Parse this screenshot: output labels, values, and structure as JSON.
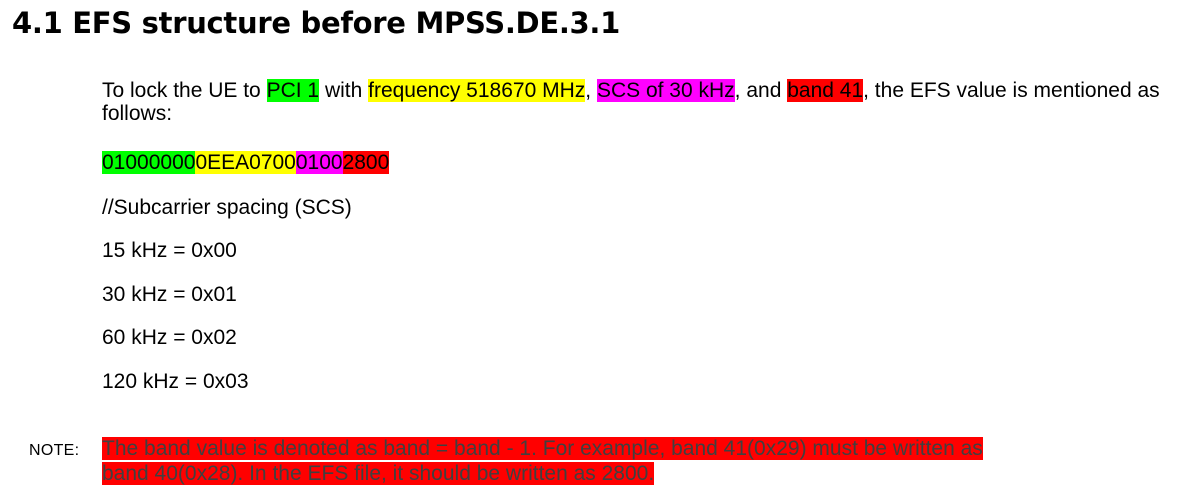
{
  "heading": "4.1 EFS structure before MPSS.DE.3.1",
  "intro": {
    "t1": "To lock the UE to ",
    "pci": "PCI 1",
    "t2": " with ",
    "freq": "frequency 518670 MHz",
    "t3": ", ",
    "scs": "SCS of 30 kHz",
    "t4": ", and ",
    "band": "band 41",
    "t5": ", the EFS value is mentioned as follows:"
  },
  "efs_value": {
    "pci_part": "01000000",
    "freq_part": "0EEA0700",
    "scs_part": "0100",
    "band_part": "2800"
  },
  "scs_comment": "//Subcarrier spacing (SCS)",
  "scs_table": [
    "15 kHz  = 0x00",
    "30 kHz = 0x01",
    "60 kHz = 0x02",
    "120 kHz = 0x03"
  ],
  "note": {
    "label": "NOTE:",
    "line1": "The band value is denoted as band = band - 1. For example, band 41(0x29) must be written as",
    "line2": "band 40(0x28). In the EFS file, it should be written as 2800."
  },
  "colors": {
    "pci": "#00ff00",
    "frequency": "#ffff00",
    "scs": "#ff00ff",
    "band": "#ff0000"
  }
}
